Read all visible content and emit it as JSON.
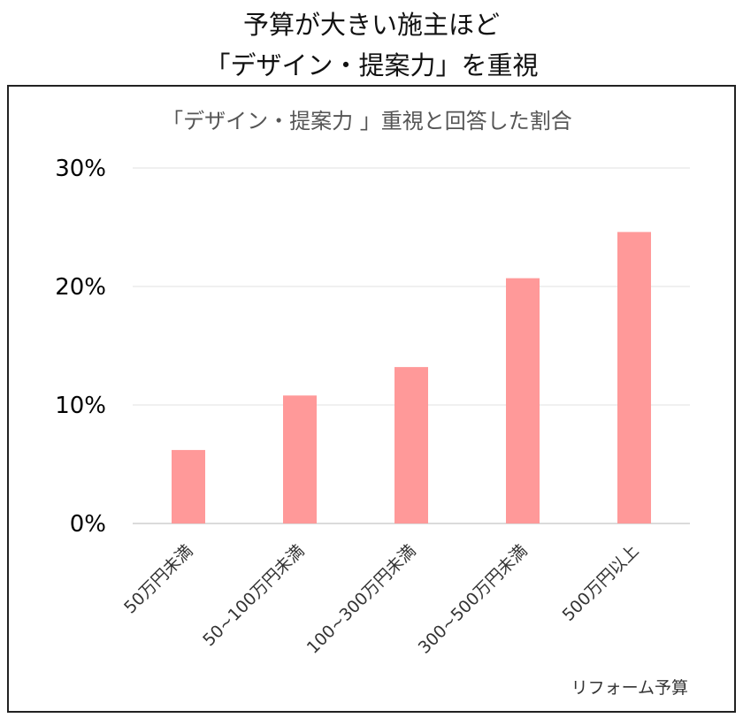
{
  "headline": {
    "line1": "予算が大きい施主ほど",
    "line2": "「デザイン・提案力」を重視"
  },
  "chart_data": {
    "type": "bar",
    "title": "「デザイン・提案力 」重視と回答した割合",
    "xlabel": "リフォーム予算",
    "ylabel": "",
    "categories": [
      "50万円未満",
      "50~100万円未満",
      "100~300万円未満",
      "300~500万円未満",
      "500万円以上"
    ],
    "values": [
      6.2,
      10.8,
      13.2,
      20.7,
      24.6
    ],
    "ylim": [
      0,
      30
    ],
    "yticks": [
      0,
      10,
      20,
      30
    ],
    "ytick_labels": [
      "0%",
      "10%",
      "20%",
      "30%"
    ],
    "bar_color": "#ff9999",
    "grid": true,
    "legend": "none"
  }
}
